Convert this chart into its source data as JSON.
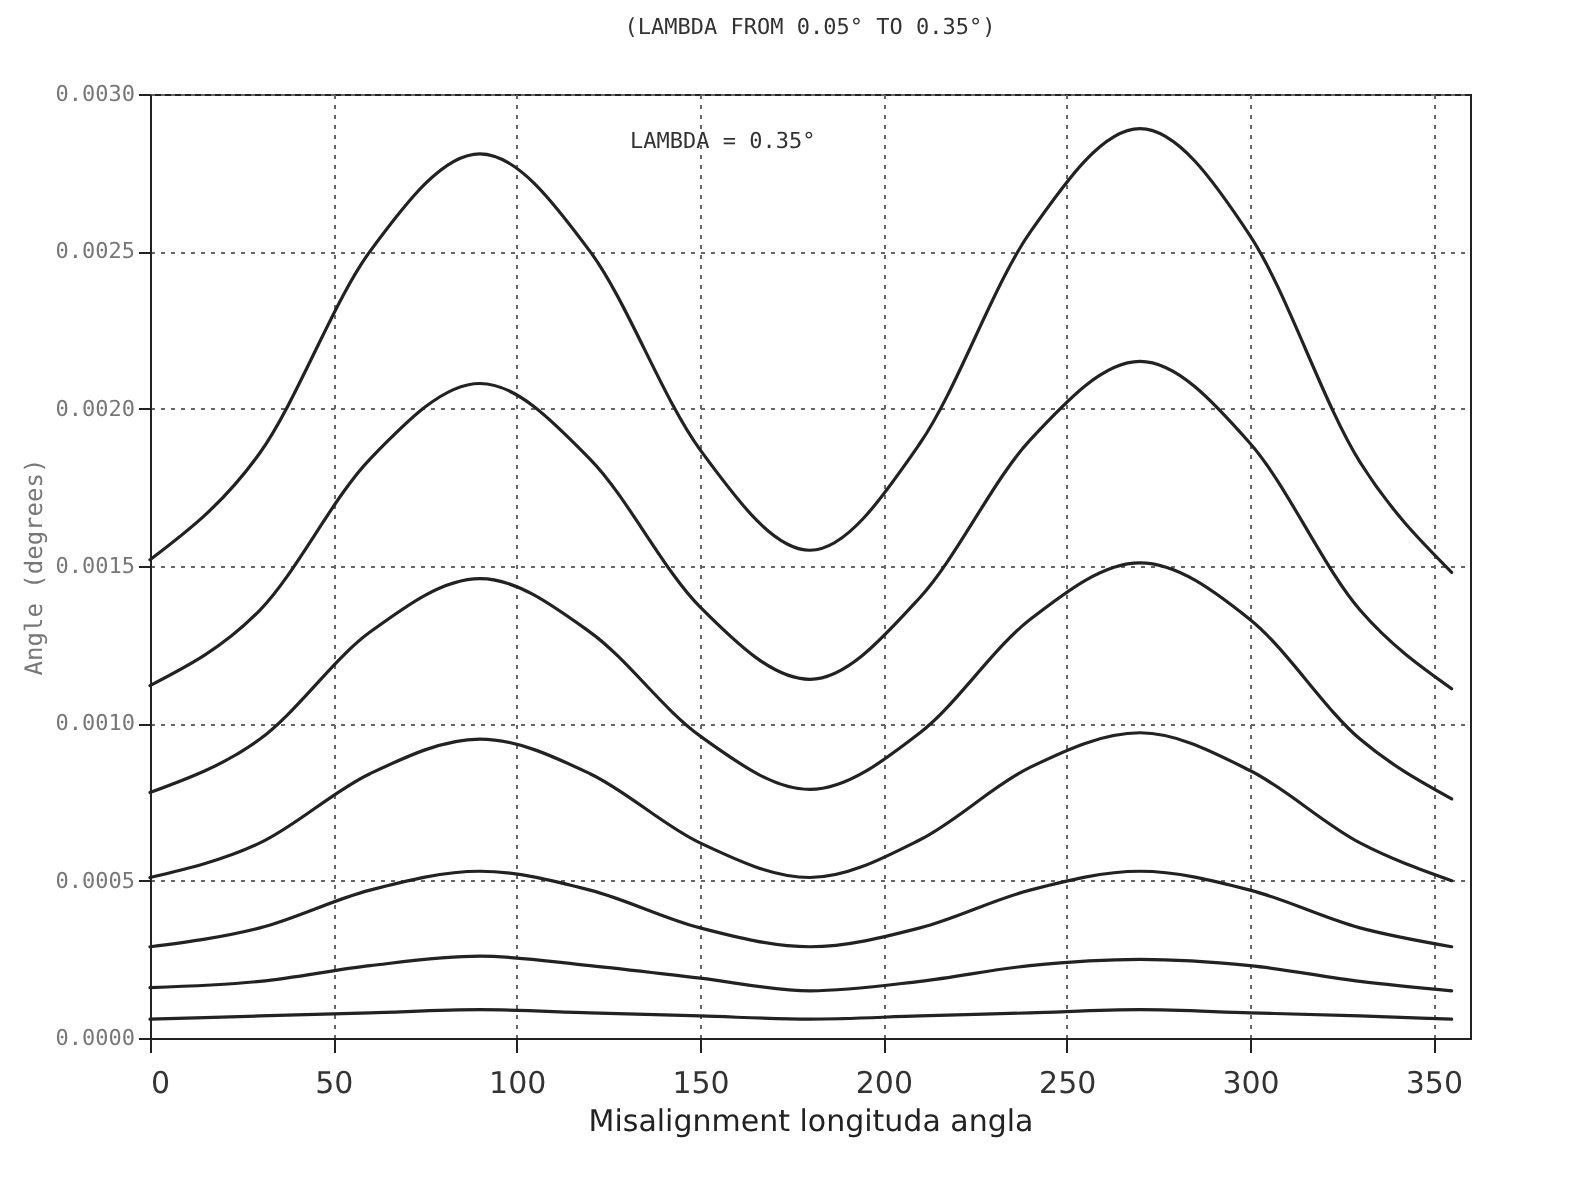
{
  "chart_data": {
    "type": "line",
    "title": "(LAMBDA FROM 0.05° TO 0.35°)",
    "xlabel": "Misalignment longituda angla",
    "ylabel": "Angle (degrees)",
    "annotations": [
      "LAMBDA = 0.35°"
    ],
    "x": [
      0,
      30,
      60,
      90,
      120,
      150,
      180,
      210,
      240,
      270,
      300,
      330,
      355
    ],
    "xlim": [
      0,
      360
    ],
    "xticks": [
      0,
      50,
      100,
      150,
      200,
      250,
      300,
      350
    ],
    "ylim": [
      0,
      0.003
    ],
    "yticks": [
      {
        "value": 0,
        "label": "0.0000"
      },
      {
        "value": 0.0005,
        "label": "0.0005"
      },
      {
        "value": 0.001,
        "label": "0.0010"
      },
      {
        "value": 0.0015,
        "label": "0.0015"
      },
      {
        "value": 0.002,
        "label": "0.0020"
      },
      {
        "value": 0.0025,
        "label": "0.0025"
      },
      {
        "value": 0.003,
        "label": "0.0030"
      }
    ],
    "grid": true,
    "marker": "none",
    "line_style": "solid",
    "series": [
      {
        "color": "#222222",
        "values": [
          0.00152,
          0.00186,
          0.0025,
          0.00281,
          0.0025,
          0.00187,
          0.00155,
          0.00189,
          0.00256,
          0.00289,
          0.00255,
          0.00183,
          0.00148
        ]
      },
      {
        "color": "#222222",
        "values": [
          0.00112,
          0.00136,
          0.00184,
          0.00208,
          0.00184,
          0.00137,
          0.00114,
          0.0014,
          0.0019,
          0.00215,
          0.00189,
          0.00136,
          0.00111
        ]
      },
      {
        "color": "#222222",
        "values": [
          0.00078,
          0.00095,
          0.00129,
          0.00146,
          0.00129,
          0.00096,
          0.00079,
          0.00097,
          0.00133,
          0.00151,
          0.00133,
          0.00095,
          0.00076
        ]
      },
      {
        "color": "#222222",
        "values": [
          0.00051,
          0.00062,
          0.00084,
          0.00095,
          0.00084,
          0.00062,
          0.00051,
          0.00063,
          0.00086,
          0.00097,
          0.00085,
          0.00062,
          0.0005
        ]
      },
      {
        "color": "#222222",
        "values": [
          0.00029,
          0.00035,
          0.00047,
          0.00053,
          0.00047,
          0.00035,
          0.00029,
          0.00035,
          0.00047,
          0.00053,
          0.00047,
          0.00035,
          0.00029
        ]
      },
      {
        "color": "#222222",
        "values": [
          0.00016,
          0.00018,
          0.00023,
          0.00026,
          0.00023,
          0.00019,
          0.00015,
          0.00018,
          0.00023,
          0.00025,
          0.00023,
          0.00018,
          0.00015
        ]
      },
      {
        "color": "#222222",
        "values": [
          6e-05,
          7e-05,
          8e-05,
          9e-05,
          8e-05,
          7e-05,
          6e-05,
          7e-05,
          8e-05,
          9e-05,
          8e-05,
          7e-05,
          6e-05
        ]
      }
    ]
  }
}
